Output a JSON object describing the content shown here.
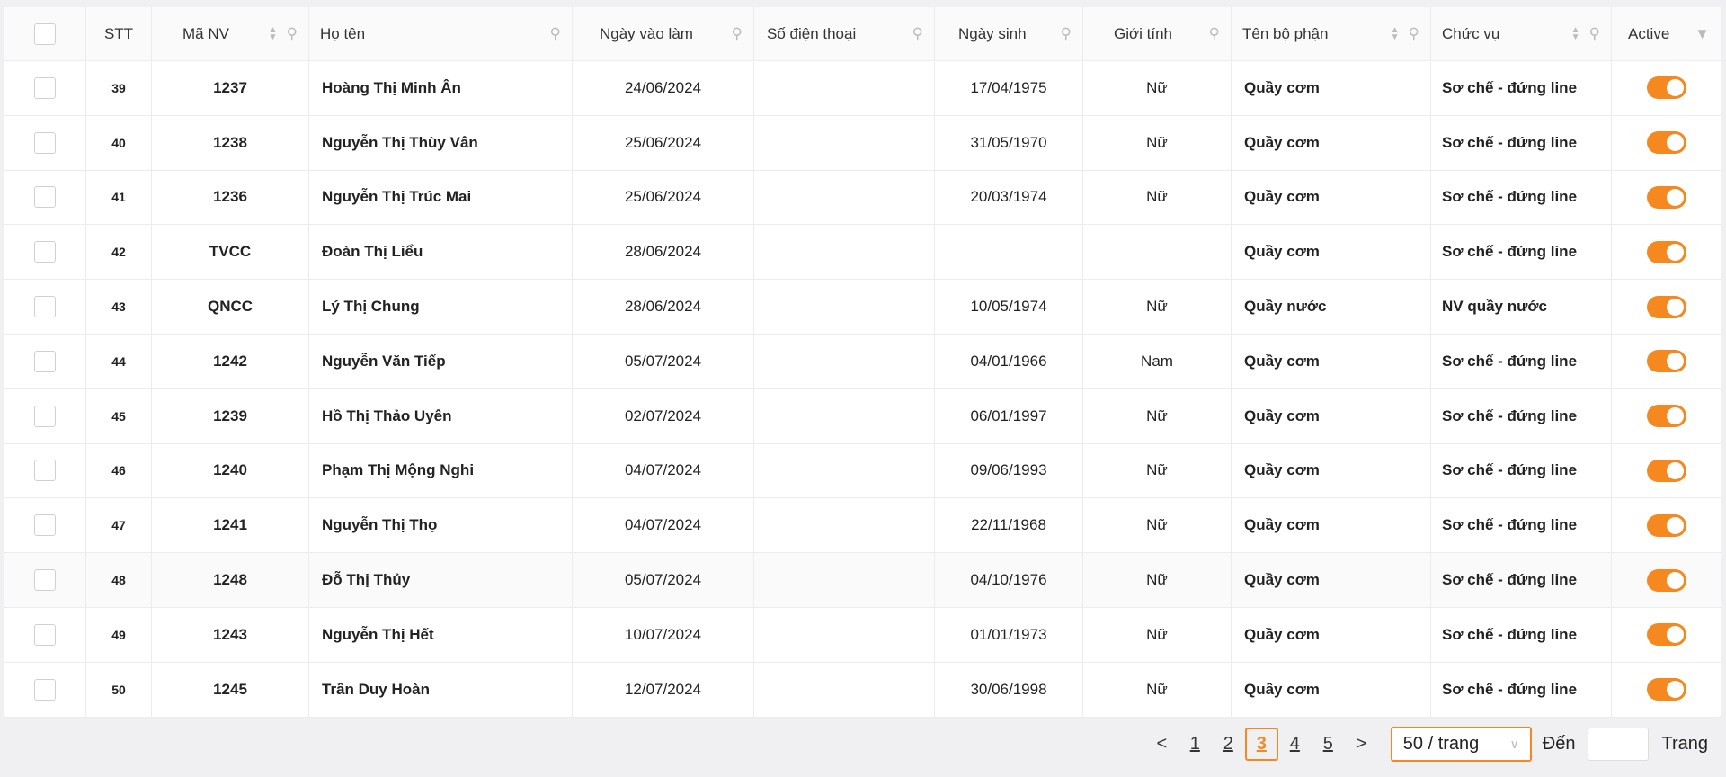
{
  "columns": {
    "stt": "STT",
    "ma_nv": "Mã NV",
    "ho_ten": "Họ tên",
    "ngay_vao_lam": "Ngày vào làm",
    "sdt": "Số điện thoại",
    "ngay_sinh": "Ngày sinh",
    "gioi_tinh": "Giới tính",
    "bo_phan": "Tên bộ phận",
    "chuc_vu": "Chức vụ",
    "active": "Active"
  },
  "accent": "#f5891f",
  "rows": [
    {
      "stt": "39",
      "ma": "1237",
      "ten": "Hoàng Thị Minh Ân",
      "nvl": "24/06/2024",
      "sdt": "",
      "ns": "17/04/1975",
      "gt": "Nữ",
      "bp": "Quầy cơm",
      "cv": "Sơ chế - đứng line",
      "active": true
    },
    {
      "stt": "40",
      "ma": "1238",
      "ten": "Nguyễn Thị Thùy Vân",
      "nvl": "25/06/2024",
      "sdt": "",
      "ns": "31/05/1970",
      "gt": "Nữ",
      "bp": "Quầy cơm",
      "cv": "Sơ chế - đứng line",
      "active": true
    },
    {
      "stt": "41",
      "ma": "1236",
      "ten": "Nguyễn Thị Trúc Mai",
      "nvl": "25/06/2024",
      "sdt": "",
      "ns": "20/03/1974",
      "gt": "Nữ",
      "bp": "Quầy cơm",
      "cv": "Sơ chế - đứng line",
      "active": true
    },
    {
      "stt": "42",
      "ma": "TVCC",
      "ten": "Đoàn Thị Liểu",
      "nvl": "28/06/2024",
      "sdt": "",
      "ns": "",
      "gt": "",
      "bp": "Quầy cơm",
      "cv": "Sơ chế - đứng line",
      "active": true
    },
    {
      "stt": "43",
      "ma": "QNCC",
      "ten": "Lý Thị Chung",
      "nvl": "28/06/2024",
      "sdt": "",
      "ns": "10/05/1974",
      "gt": "Nữ",
      "bp": "Quầy nước",
      "cv": "NV quầy nước",
      "active": true
    },
    {
      "stt": "44",
      "ma": "1242",
      "ten": "Nguyễn Văn Tiếp",
      "nvl": "05/07/2024",
      "sdt": "",
      "ns": "04/01/1966",
      "gt": "Nam",
      "bp": "Quầy cơm",
      "cv": "Sơ chế - đứng line",
      "active": true
    },
    {
      "stt": "45",
      "ma": "1239",
      "ten": "Hồ Thị Thảo Uyên",
      "nvl": "02/07/2024",
      "sdt": "",
      "ns": "06/01/1997",
      "gt": "Nữ",
      "bp": "Quầy cơm",
      "cv": "Sơ chế - đứng line",
      "active": true
    },
    {
      "stt": "46",
      "ma": "1240",
      "ten": "Phạm Thị Mộng Nghi",
      "nvl": "04/07/2024",
      "sdt": "",
      "ns": "09/06/1993",
      "gt": "Nữ",
      "bp": "Quầy cơm",
      "cv": "Sơ chế - đứng line",
      "active": true
    },
    {
      "stt": "47",
      "ma": "1241",
      "ten": "Nguyễn Thị Thọ",
      "nvl": "04/07/2024",
      "sdt": "",
      "ns": "22/11/1968",
      "gt": "Nữ",
      "bp": "Quầy cơm",
      "cv": "Sơ chế - đứng line",
      "active": true
    },
    {
      "stt": "48",
      "ma": "1248",
      "ten": "Đỗ Thị Thủy",
      "nvl": "05/07/2024",
      "sdt": "",
      "ns": "04/10/1976",
      "gt": "Nữ",
      "bp": "Quầy cơm",
      "cv": "Sơ chế - đứng line",
      "active": true
    },
    {
      "stt": "49",
      "ma": "1243",
      "ten": "Nguyễn Thị Hết",
      "nvl": "10/07/2024",
      "sdt": "",
      "ns": "01/01/1973",
      "gt": "Nữ",
      "bp": "Quầy cơm",
      "cv": "Sơ chế - đứng line",
      "active": true
    },
    {
      "stt": "50",
      "ma": "1245",
      "ten": "Trần Duy Hoàn",
      "nvl": "12/07/2024",
      "sdt": "",
      "ns": "30/06/1998",
      "gt": "Nữ",
      "bp": "Quầy cơm",
      "cv": "Sơ chế - đứng line",
      "active": true
    }
  ],
  "pagination": {
    "prev": "<",
    "next": ">",
    "pages": [
      "1",
      "2",
      "3",
      "4",
      "5"
    ],
    "current": "3",
    "page_size": "50 / trang",
    "goto_label": "Đến",
    "goto_value": "",
    "page_suffix": "Trang"
  }
}
